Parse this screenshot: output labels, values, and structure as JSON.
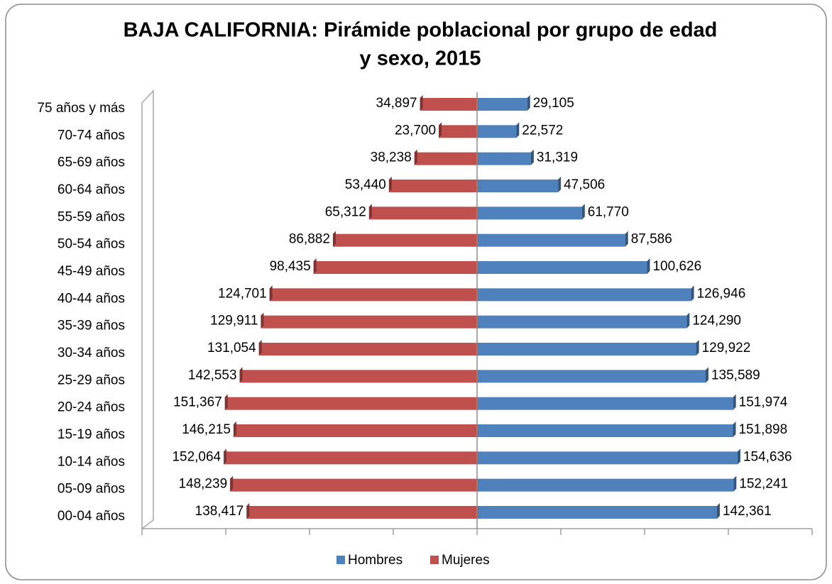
{
  "chart_data": {
    "type": "pyramid",
    "title": [
      "BAJA CALIFORNIA: Pirámide poblacional por grupo de edad",
      "y sexo, 2015"
    ],
    "categories": [
      "75 años y más",
      "70-74 años",
      "65-69 años",
      "60-64 años",
      "55-59 años",
      "50-54 años",
      "45-49 años",
      "40-44 años",
      "35-39 años",
      "30-34 años",
      "25-29 años",
      "20-24 años",
      "15-19 años",
      "10-14 años",
      "05-09 años",
      "00-04 años"
    ],
    "series": [
      {
        "name": "Hombres",
        "color": "#4f81bd",
        "values": [
          29105,
          22572,
          31319,
          47506,
          61770,
          87586,
          100626,
          126946,
          124290,
          129922,
          135589,
          151974,
          151898,
          154636,
          152241,
          142361
        ],
        "value_labels": [
          "29,105",
          "22,572",
          "31,319",
          "47,506",
          "61,770",
          "87,586",
          "100,626",
          "126,946",
          "124,290",
          "129,922",
          "135,589",
          "151,974",
          "151,898",
          "154,636",
          "152,241",
          "142,361"
        ]
      },
      {
        "name": "Mujeres",
        "color": "#c0504d",
        "values": [
          34897,
          23700,
          38238,
          53440,
          65312,
          86882,
          98435,
          124701,
          129911,
          131054,
          142553,
          151367,
          146215,
          152064,
          148239,
          138417
        ],
        "value_labels": [
          "34,897",
          "23,700",
          "38,238",
          "53,440",
          "65,312",
          "86,882",
          "98,435",
          "124,701",
          "129,911",
          "131,054",
          "142,553",
          "151,367",
          "146,215",
          "152,064",
          "148,239",
          "138,417"
        ]
      }
    ],
    "xlim": [
      -200000,
      200000
    ],
    "xticks": [
      -200000,
      -150000,
      -100000,
      -50000,
      0,
      50000,
      100000,
      150000,
      200000
    ],
    "legend": "bottom"
  }
}
